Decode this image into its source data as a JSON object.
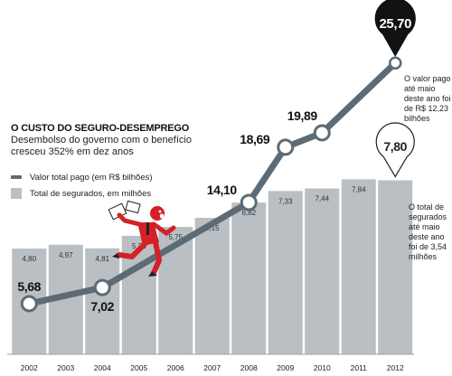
{
  "title": "O CUSTO DO SEGURO-DESEMPREGO",
  "subtitle": "Desembolso do governo com o benefício cresceu 352% em dez anos",
  "legend": {
    "line": "Valor total pago (em R$ bilhões)",
    "bars": "Total de segurados, em milhões"
  },
  "notes": {
    "valor_pago": "O valor pago até maio deste ano foi de R$ 12,23 bilhões",
    "segurados": "O total de segurados até maio deste ano foi de 3,54 milhões"
  },
  "colors": {
    "bar": "#b9bfc3",
    "line": "#5c6b75",
    "pin": "#111111",
    "runner": "#d42027"
  },
  "icons": {
    "runner": "running-worker-icon"
  },
  "chart_data": {
    "type": "bar",
    "categories": [
      "2002",
      "2003",
      "2004",
      "2005",
      "2006",
      "2007",
      "2008",
      "2009",
      "2010",
      "2011",
      "2012"
    ],
    "series": [
      {
        "name": "Total de segurados, em milhões",
        "type": "bar",
        "values": [
          4.8,
          4.97,
          4.81,
          5.36,
          5.75,
          6.15,
          6.82,
          7.33,
          7.44,
          7.84,
          7.8
        ],
        "labels": [
          "4,80",
          "4,97",
          "4,81",
          "5,36",
          "5,75",
          "6,15",
          "6,82",
          "7,33",
          "7,44",
          "7,84",
          "7,80"
        ]
      },
      {
        "name": "Valor total pago (em R$ bilhões)",
        "type": "line",
        "x": [
          "2002",
          "2004",
          "2008",
          "2009",
          "2010",
          "2012"
        ],
        "values": [
          5.68,
          7.02,
          14.1,
          18.69,
          19.89,
          25.7
        ],
        "labels": [
          "5,68",
          "7,02",
          "14,10",
          "18,69",
          "19,89",
          "25,70"
        ]
      }
    ],
    "highlight": {
      "bar": "2012",
      "line": "2012"
    }
  }
}
